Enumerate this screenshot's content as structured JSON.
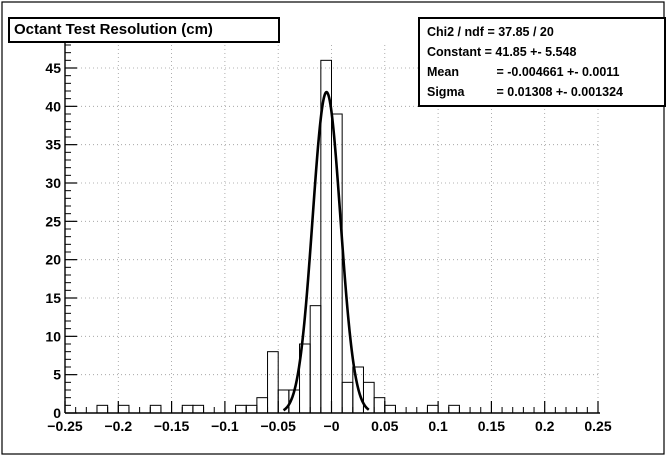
{
  "title": "Octant Test Resolution (cm)",
  "stats": {
    "chi2": {
      "label": "Chi2 / ndf",
      "value": "= 37.85 / 20"
    },
    "constant": {
      "label": "Constant",
      "value": "= 41.85 +- 5.548"
    },
    "mean": {
      "label": "Mean",
      "value": "= -0.004661 +- 0.0011"
    },
    "sigma": {
      "label": "Sigma",
      "value": "= 0.01308 +- 0.001324"
    }
  },
  "chart_data": {
    "type": "bar",
    "title": "Octant Test Resolution (cm)",
    "xlim": [
      -0.25,
      0.25
    ],
    "ylim": [
      0,
      48
    ],
    "x_ticks": [
      "-0.25",
      "-0.2",
      "-0.15",
      "-0.1",
      "-0.05",
      "-0",
      "0.05",
      "0.1",
      "0.15",
      "0.2",
      "0.25"
    ],
    "y_ticks": [
      "0",
      "5",
      "10",
      "15",
      "20",
      "25",
      "30",
      "35",
      "40",
      "45"
    ],
    "grid": true,
    "bin_width": 0.01,
    "bins": [
      {
        "x": -0.225,
        "count": 0
      },
      {
        "x": -0.215,
        "count": 1
      },
      {
        "x": -0.205,
        "count": 0
      },
      {
        "x": -0.195,
        "count": 1
      },
      {
        "x": -0.185,
        "count": 0
      },
      {
        "x": -0.175,
        "count": 0
      },
      {
        "x": -0.165,
        "count": 1
      },
      {
        "x": -0.155,
        "count": 0
      },
      {
        "x": -0.145,
        "count": 0
      },
      {
        "x": -0.135,
        "count": 1
      },
      {
        "x": -0.125,
        "count": 1
      },
      {
        "x": -0.115,
        "count": 0
      },
      {
        "x": -0.105,
        "count": 0
      },
      {
        "x": -0.095,
        "count": 0
      },
      {
        "x": -0.085,
        "count": 1
      },
      {
        "x": -0.075,
        "count": 1
      },
      {
        "x": -0.065,
        "count": 2
      },
      {
        "x": -0.055,
        "count": 8
      },
      {
        "x": -0.045,
        "count": 3
      },
      {
        "x": -0.035,
        "count": 3
      },
      {
        "x": -0.025,
        "count": 9
      },
      {
        "x": -0.015,
        "count": 14
      },
      {
        "x": -0.005,
        "count": 46
      },
      {
        "x": 0.005,
        "count": 39
      },
      {
        "x": 0.015,
        "count": 4
      },
      {
        "x": 0.025,
        "count": 6
      },
      {
        "x": 0.035,
        "count": 4
      },
      {
        "x": 0.045,
        "count": 2
      },
      {
        "x": 0.055,
        "count": 1
      },
      {
        "x": 0.065,
        "count": 0
      },
      {
        "x": 0.075,
        "count": 0
      },
      {
        "x": 0.085,
        "count": 0
      },
      {
        "x": 0.095,
        "count": 1
      },
      {
        "x": 0.105,
        "count": 0
      },
      {
        "x": 0.115,
        "count": 1
      },
      {
        "x": 0.125,
        "count": 0
      }
    ],
    "fit": {
      "function": "gaus",
      "constant": 41.85,
      "mean": -0.004661,
      "sigma": 0.01308,
      "x_range": [
        -0.045,
        0.035
      ]
    }
  }
}
